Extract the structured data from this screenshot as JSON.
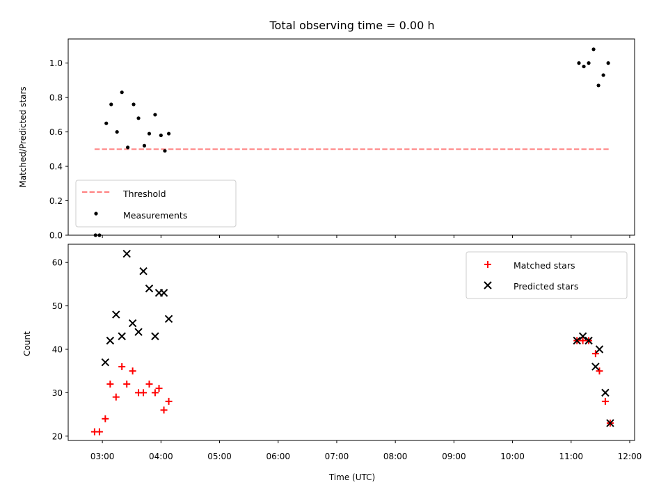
{
  "figure": {
    "title": "Total observing time = 0.00 h"
  },
  "colors": {
    "threshold": "#ff7f7f",
    "measurements": "#000000",
    "matched": "#ff0000",
    "predicted": "#000000",
    "axes": "#000000",
    "legend_border": "#cccccc"
  },
  "chart_data": [
    {
      "type": "scatter",
      "panel": "top",
      "title": "Total observing time = 0.00 h",
      "ylabel": "Matched/Predicted stars",
      "xlabel": "",
      "xlim": [
        "02:25",
        "12:05"
      ],
      "ylim": [
        0,
        1.14
      ],
      "yticks": [
        0.0,
        0.2,
        0.4,
        0.6,
        0.8,
        1.0
      ],
      "ytick_labels": [
        "0.0",
        "0.2",
        "0.4",
        "0.6",
        "0.8",
        "1.0"
      ],
      "grid": false,
      "legend_placement": "lower-left",
      "series": [
        {
          "name": "Threshold",
          "kind": "dashed-line",
          "x": [
            "02:52",
            "11:40"
          ],
          "y": [
            0.5,
            0.5
          ]
        },
        {
          "name": "Measurements",
          "kind": "dots",
          "x": [
            "02:53",
            "02:57",
            "03:04",
            "03:09",
            "03:15",
            "03:20",
            "03:26",
            "03:32",
            "03:37",
            "03:43",
            "03:48",
            "03:54",
            "04:00",
            "04:04",
            "04:08",
            "11:08",
            "11:13",
            "11:18",
            "11:23",
            "11:28",
            "11:33",
            "11:38"
          ],
          "y": [
            0.0,
            0.0,
            0.65,
            0.76,
            0.6,
            0.83,
            0.51,
            0.76,
            0.68,
            0.52,
            0.59,
            0.7,
            0.58,
            0.49,
            0.59,
            1.0,
            0.98,
            1.0,
            1.08,
            0.87,
            0.93,
            1.0
          ]
        }
      ]
    },
    {
      "type": "scatter",
      "panel": "bottom",
      "title": "",
      "ylabel": "Count",
      "xlabel": "Time (UTC)",
      "xlim": [
        "02:25",
        "12:05"
      ],
      "ylim": [
        19,
        64.2
      ],
      "yticks": [
        20,
        30,
        40,
        50,
        60
      ],
      "ytick_labels": [
        "20",
        "30",
        "40",
        "50",
        "60"
      ],
      "xticks": [
        "03:00",
        "04:00",
        "05:00",
        "06:00",
        "07:00",
        "08:00",
        "09:00",
        "10:00",
        "11:00",
        "12:00"
      ],
      "grid": false,
      "legend_placement": "upper-right",
      "series": [
        {
          "name": "Matched stars",
          "marker": "plus",
          "x": [
            "02:52",
            "02:57",
            "03:03",
            "03:08",
            "03:14",
            "03:20",
            "03:25",
            "03:31",
            "03:37",
            "03:42",
            "03:48",
            "03:54",
            "03:58",
            "04:03",
            "04:08",
            "11:06",
            "11:12",
            "11:18",
            "11:25",
            "11:29",
            "11:35",
            "11:40"
          ],
          "y": [
            21,
            21,
            24,
            32,
            29,
            36,
            32,
            35,
            30,
            30,
            32,
            30,
            31,
            26,
            28,
            42,
            42,
            42,
            39,
            35,
            28,
            23
          ]
        },
        {
          "name": "Predicted stars",
          "marker": "x",
          "x": [
            "03:03",
            "03:08",
            "03:14",
            "03:20",
            "03:25",
            "03:31",
            "03:37",
            "03:42",
            "03:48",
            "03:54",
            "03:58",
            "04:03",
            "04:08",
            "11:06",
            "11:12",
            "11:18",
            "11:25",
            "11:29",
            "11:35",
            "11:40"
          ],
          "y": [
            37,
            42,
            48,
            43,
            62,
            46,
            44,
            58,
            54,
            43,
            53,
            53,
            47,
            42,
            43,
            42,
            36,
            40,
            30,
            23
          ]
        }
      ]
    }
  ]
}
